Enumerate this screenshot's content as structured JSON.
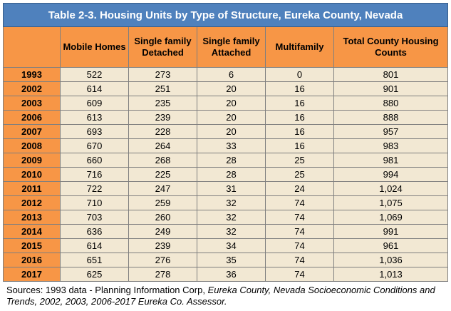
{
  "title": "Table 2-3. Housing Units by Type of Structure, Eureka County, Nevada",
  "headers": {
    "year": "",
    "mobile": "Mobile Homes",
    "detached": "Single family Detached",
    "attached": "Single family Attached",
    "multifamily": "Multifamily",
    "total": "Total County Housing Counts"
  },
  "rows": [
    {
      "year": "1993",
      "mobile": "522",
      "detached": "273",
      "attached": "6",
      "multifamily": "0",
      "total": "801"
    },
    {
      "year": "2002",
      "mobile": "614",
      "detached": "251",
      "attached": "20",
      "multifamily": "16",
      "total": "901"
    },
    {
      "year": "2003",
      "mobile": "609",
      "detached": "235",
      "attached": "20",
      "multifamily": "16",
      "total": "880"
    },
    {
      "year": "2006",
      "mobile": "613",
      "detached": "239",
      "attached": "20",
      "multifamily": "16",
      "total": "888"
    },
    {
      "year": "2007",
      "mobile": "693",
      "detached": "228",
      "attached": "20",
      "multifamily": "16",
      "total": "957"
    },
    {
      "year": "2008",
      "mobile": "670",
      "detached": "264",
      "attached": "33",
      "multifamily": "16",
      "total": "983"
    },
    {
      "year": "2009",
      "mobile": "660",
      "detached": "268",
      "attached": "28",
      "multifamily": "25",
      "total": "981"
    },
    {
      "year": "2010",
      "mobile": "716",
      "detached": "225",
      "attached": "28",
      "multifamily": "25",
      "total": "994"
    },
    {
      "year": "2011",
      "mobile": "722",
      "detached": "247",
      "attached": "31",
      "multifamily": "24",
      "total": "1,024"
    },
    {
      "year": "2012",
      "mobile": "710",
      "detached": "259",
      "attached": "32",
      "multifamily": "74",
      "total": "1,075"
    },
    {
      "year": "2013",
      "mobile": "703",
      "detached": "260",
      "attached": "32",
      "multifamily": "74",
      "total": "1,069"
    },
    {
      "year": "2014",
      "mobile": "636",
      "detached": "249",
      "attached": "32",
      "multifamily": "74",
      "total": "991"
    },
    {
      "year": "2015",
      "mobile": "614",
      "detached": "239",
      "attached": "34",
      "multifamily": "74",
      "total": "961"
    },
    {
      "year": "2016",
      "mobile": "651",
      "detached": "276",
      "attached": "35",
      "multifamily": "74",
      "total": "1,036"
    },
    {
      "year": "2017",
      "mobile": "625",
      "detached": "278",
      "attached": "36",
      "multifamily": "74",
      "total": "1,013"
    }
  ],
  "sources": {
    "prefix": "Sources: 1993 data - Planning Information Corp, ",
    "italic": "Eureka County, Nevada Socioeconomic Conditions and Trends, 2002, 2003, 2006-2017 Eureka Co. Assessor."
  },
  "colors": {
    "title_bg": "#4f81bd",
    "header_bg": "#f79646",
    "cell_bg": "#f2e8d3"
  }
}
